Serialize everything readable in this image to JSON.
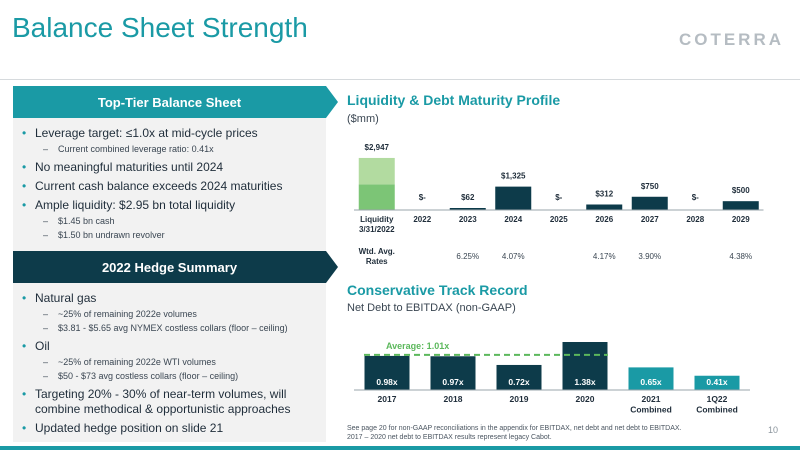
{
  "header": {
    "title": "Balance Sheet Strength",
    "logo_text": "COTERRA",
    "page_number": "10"
  },
  "balance_panel": {
    "title": "Top-Tier Balance Sheet",
    "bullets": [
      {
        "text": "Leverage target: ≤1.0x at mid-cycle prices",
        "level": 1
      },
      {
        "text": "Current combined leverage ratio: 0.41x",
        "level": 2
      },
      {
        "text": "No meaningful maturities until 2024",
        "level": 1
      },
      {
        "text": "Current cash balance exceeds 2024 maturities",
        "level": 1
      },
      {
        "text": "Ample liquidity: $2.95 bn total liquidity",
        "level": 1
      },
      {
        "text": "$1.45 bn cash",
        "level": 2
      },
      {
        "text": "$1.50 bn undrawn revolver",
        "level": 2
      }
    ]
  },
  "hedge_panel": {
    "title": "2022 Hedge Summary",
    "bullets": [
      {
        "text": "Natural gas",
        "level": 1
      },
      {
        "text": "~25% of remaining 2022e volumes",
        "level": 2
      },
      {
        "text": "$3.81 - $5.65 avg NYMEX costless collars (floor – ceiling)",
        "level": 2
      },
      {
        "text": "Oil",
        "level": 1
      },
      {
        "text": "~25% of remaining 2022e WTI volumes",
        "level": 2
      },
      {
        "text": "$50 - $73 avg costless collars (floor – ceiling)",
        "level": 2
      },
      {
        "text": "Targeting 20% - 30% of near-term volumes, will combine methodical & opportunistic approaches",
        "level": 1
      },
      {
        "text": "Updated hedge position on slide 21",
        "level": 1
      }
    ]
  },
  "liquidity_section": {
    "title": "Liquidity & Debt Maturity Profile",
    "subtitle": "($mm)"
  },
  "track_section": {
    "title": "Conservative Track Record",
    "subtitle": "Net Debt to EBITDAX (non-GAAP)"
  },
  "footnote": {
    "line1": "See page 20 for non-GAAP reconciliations in the appendix for EBITDAX, net debt and net debt to EBITDAX.",
    "line2": "2017 – 2020 net debt to EBITDAX results represent legacy Cabot."
  },
  "chart_data": [
    {
      "type": "bar",
      "title": "Liquidity & Debt Maturity Profile",
      "unit": "($mm)",
      "categories": [
        "Liquidity\n3/31/2022",
        "2022",
        "2023",
        "2024",
        "2025",
        "2026",
        "2027",
        "2028",
        "2029"
      ],
      "values": [
        2947,
        0,
        62,
        1325,
        0,
        312,
        750,
        0,
        500
      ],
      "value_labels": [
        "$2,947",
        "$-",
        "$62",
        "$1,325",
        "$-",
        "$312",
        "$750",
        "$-",
        "$500"
      ],
      "liquidity_breakdown": {
        "cash": 1450,
        "undrawn_revolver": 1500
      },
      "rate_label": "Wtd. Avg.\nRates",
      "rates": [
        "",
        "",
        "6.25%",
        "4.07%",
        "",
        "4.17%",
        "3.90%",
        "",
        "4.38%"
      ],
      "colors": {
        "cash": "#7cc576",
        "revolver": "#b2dba0",
        "maturity": "#0d3b4a"
      }
    },
    {
      "type": "bar",
      "title": "Conservative Track Record",
      "ylabel": "Net Debt to EBITDAX (non-GAAP)",
      "categories": [
        "2017",
        "2018",
        "2019",
        "2020",
        "2021\nCombined",
        "1Q22\nCombined"
      ],
      "values": [
        0.98,
        0.97,
        0.72,
        1.38,
        0.65,
        0.41
      ],
      "value_labels": [
        "0.98x",
        "0.97x",
        "0.72x",
        "1.38x",
        "0.65x",
        "0.41x"
      ],
      "average": {
        "label": "Average: 1.01x",
        "value": 1.01
      },
      "colors": {
        "legacy": "#0d3b4a",
        "combined": "#1a9aa5",
        "average_line": "#5cb85c"
      }
    }
  ]
}
